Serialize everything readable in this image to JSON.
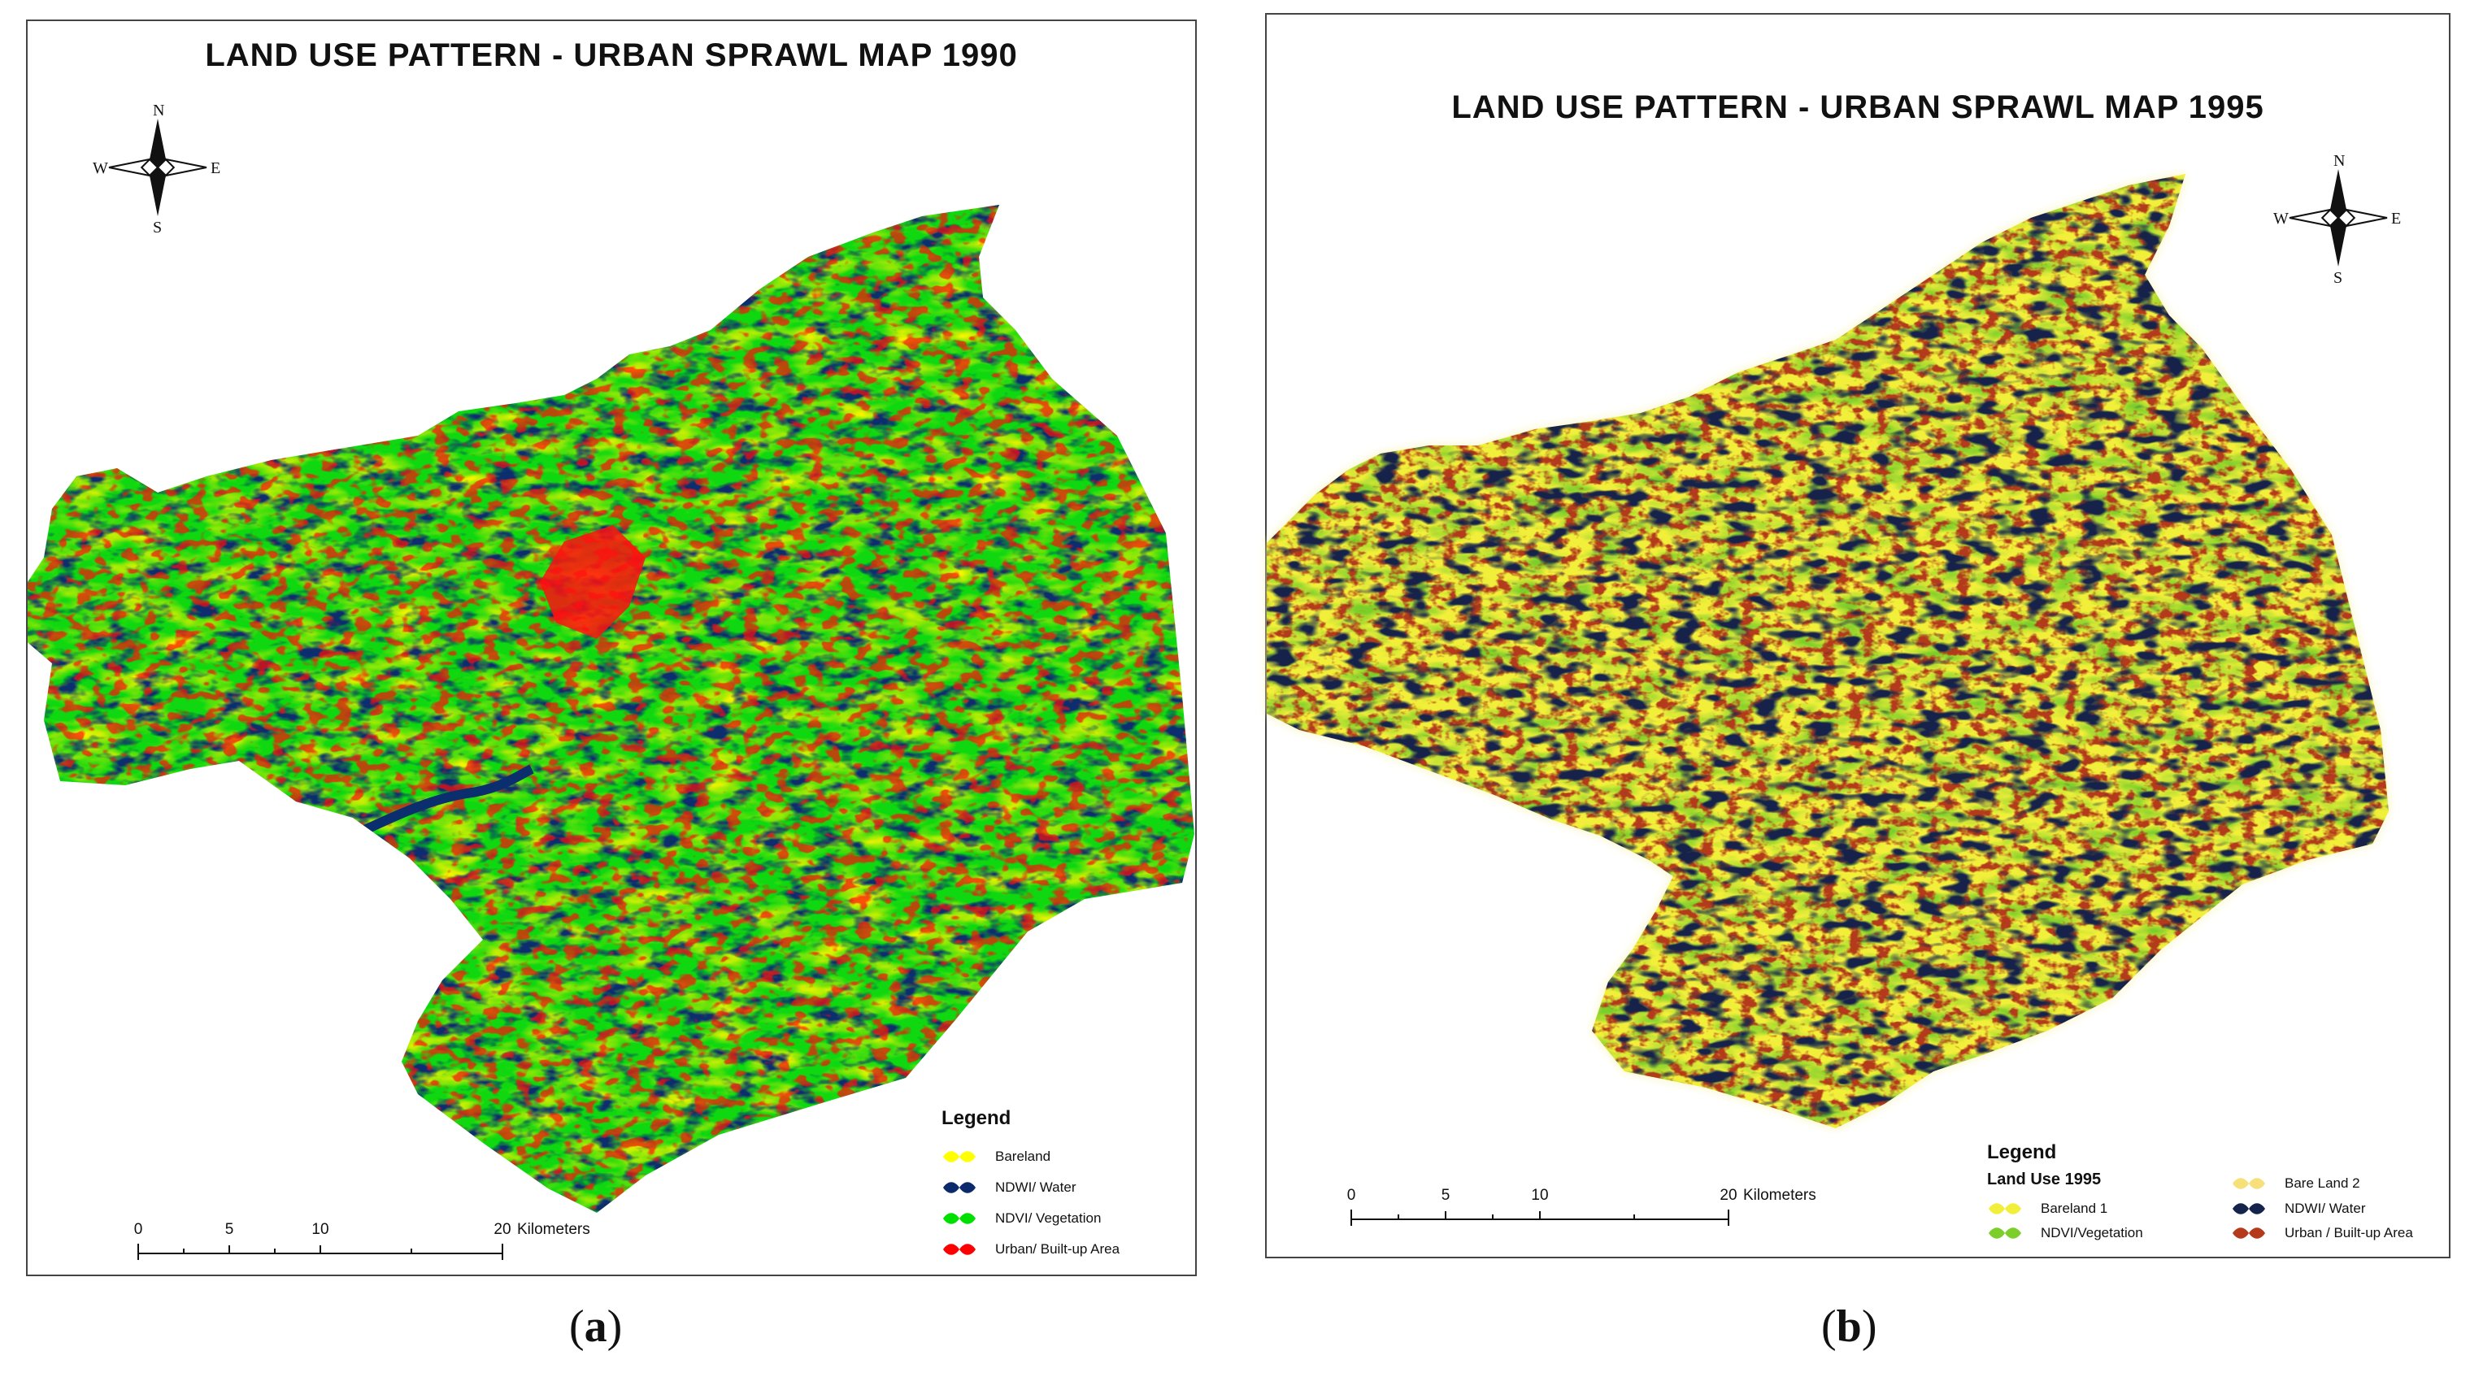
{
  "panel_a": {
    "title": "LAND USE PATTERN - URBAN SPRAWL MAP 1990",
    "compass": {
      "n": "N",
      "s": "S",
      "e": "E",
      "w": "W"
    },
    "legend": {
      "title": "Legend",
      "items": [
        {
          "label": "Bareland",
          "color": "#ffff00"
        },
        {
          "label": "NDWI/ Water",
          "color": "#0a2a6b"
        },
        {
          "label": "NDVI/ Vegetation",
          "color": "#00e000"
        },
        {
          "label": "Urban/ Built-up Area",
          "color": "#ff0000"
        }
      ]
    },
    "scale": {
      "ticks": [
        "0",
        "5",
        "10",
        "20"
      ],
      "unit": "Kilometers"
    },
    "caption": "a"
  },
  "panel_b": {
    "title": "LAND USE PATTERN - URBAN SPRAWL MAP 1995",
    "compass": {
      "n": "N",
      "s": "S",
      "e": "E",
      "w": "W"
    },
    "legend": {
      "title": "Legend",
      "subtitle": "Land Use 1995",
      "items": [
        {
          "label": "Bareland 1",
          "color": "#f2ef3a"
        },
        {
          "label": "NDVI/Vegetation",
          "color": "#7ccf2a"
        },
        {
          "label": "Bare Land 2",
          "color": "#f7e07a"
        },
        {
          "label": "NDWI/ Water",
          "color": "#14244a"
        },
        {
          "label": "Urban / Built-up Area",
          "color": "#b33a1a"
        }
      ]
    },
    "scale": {
      "ticks": [
        "0",
        "5",
        "10",
        "20"
      ],
      "unit": "Kilometers"
    },
    "caption": "b"
  }
}
